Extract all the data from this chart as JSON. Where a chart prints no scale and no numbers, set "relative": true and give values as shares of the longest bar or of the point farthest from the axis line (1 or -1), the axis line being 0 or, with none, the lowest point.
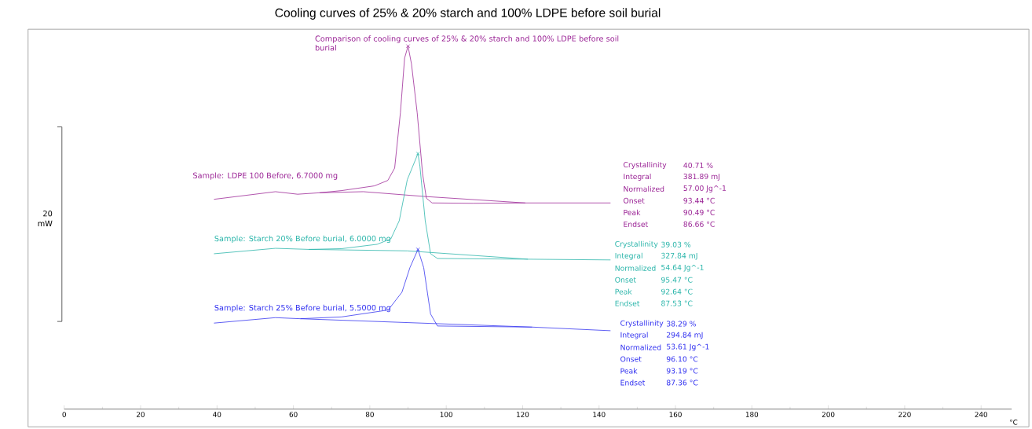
{
  "chart_data": {
    "type": "line",
    "relative": true,
    "title": "Cooling curves of 25% & 20% starch and 100% LDPE before soil burial",
    "xlabel": "°C",
    "xlim": [
      0,
      248
    ],
    "xticks": [
      0,
      20,
      40,
      60,
      80,
      100,
      120,
      140,
      160,
      180,
      200,
      220,
      240
    ],
    "tick_labels": "x",
    "line_style": "solid",
    "series": [
      {
        "name": "Sample: LDPE 100 Before, 6.7000 mg",
        "color": "#9b2596",
        "marker": "none",
        "x": [
          39.2,
          55.3,
          61.1,
          66.8,
          72.6,
          81.2,
          84.7,
          86.5,
          88.0,
          89.1,
          90.0,
          90.9,
          92.4,
          93.8,
          94.8,
          96.3,
          107.0,
          120.7,
          143.0
        ],
        "values": [
          0.578,
          0.599,
          0.592,
          0.596,
          0.602,
          0.615,
          0.63,
          0.664,
          0.816,
          0.967,
          1.0,
          0.951,
          0.816,
          0.649,
          0.581,
          0.568,
          0.567,
          0.568,
          0.568
        ]
      },
      {
        "color": "#9b2596",
        "marker": "none",
        "x": [
          66.8,
          78.3,
          94.1,
          120.7
        ],
        "values": [
          0.596,
          0.599,
          0.586,
          0.568
        ]
      },
      {
        "name": "Sample: Starch 20% Before burial, 6.0000 mg",
        "color": "#2ab5aa",
        "marker": "none",
        "x": [
          39.2,
          55.3,
          64.0,
          72.6,
          81.9,
          85.5,
          87.7,
          89.8,
          92.6,
          93.1,
          94.5,
          95.9,
          97.7,
          121.4,
          143.0
        ],
        "values": [
          0.428,
          0.443,
          0.44,
          0.442,
          0.454,
          0.469,
          0.519,
          0.632,
          0.704,
          0.67,
          0.519,
          0.428,
          0.415,
          0.413,
          0.411
        ]
      },
      {
        "color": "#2ab5aa",
        "marker": "none",
        "x": [
          64.0,
          89.8,
          121.4
        ],
        "values": [
          0.44,
          0.436,
          0.413
        ]
      },
      {
        "name": "Sample: Starch 25% Before burial, 5.5000 mg",
        "color": "#3232f0",
        "marker": "none",
        "x": [
          39.2,
          55.3,
          61.8,
          72.6,
          84.8,
          88.4,
          90.5,
          92.6,
          94.1,
          95.9,
          97.7,
          122.5,
          143.0
        ],
        "values": [
          0.237,
          0.252,
          0.249,
          0.254,
          0.273,
          0.322,
          0.39,
          0.44,
          0.39,
          0.262,
          0.229,
          0.226,
          0.216
        ]
      },
      {
        "color": "#3232f0",
        "marker": "none",
        "x": [
          61.8,
          122.5
        ],
        "values": [
          0.249,
          0.226
        ]
      },
      {
        "type": "scatter",
        "color": "#9b2596",
        "marker": "cross",
        "x": [
          90.0
        ],
        "values": [
          1.0
        ]
      },
      {
        "type": "scatter",
        "color": "#2ab5aa",
        "marker": "cross",
        "x": [
          92.6
        ],
        "values": [
          0.704
        ]
      },
      {
        "type": "scatter",
        "color": "#3232f0",
        "marker": "cross",
        "x": [
          92.6
        ],
        "values": [
          0.44
        ]
      }
    ],
    "annotations": [
      "Comparison of cooling curves of 25% & 20% starch and 100% LDPE before soil burial",
      "20 mW",
      "Crystallinity",
      "40.71 %",
      "Integral",
      "381.89 mJ",
      "Normalized",
      "57.00 Jg^-1",
      "Onset",
      "93.44 °C",
      "Peak",
      "90.49 °C",
      "Endset",
      "86.66 °C",
      "Crystallinity",
      "39.03 %",
      "Integral",
      "327.84 mJ",
      "Normalized",
      "54.64 Jg^-1",
      "Onset",
      "95.47 °C",
      "Peak",
      "92.64 °C",
      "Endset",
      "87.53 °C",
      "Crystallinity",
      "38.29 %",
      "Integral",
      "294.84 mJ",
      "Normalized",
      "53.61 Jg^-1",
      "Onset",
      "96.10 °C",
      "Peak",
      "93.19 °C",
      "Endset",
      "87.36 °C"
    ]
  }
}
